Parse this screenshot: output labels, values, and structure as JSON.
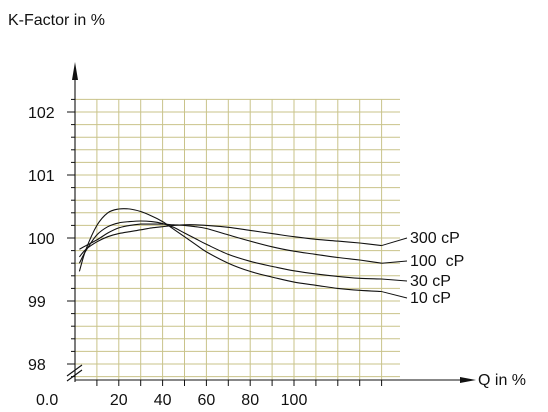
{
  "chart_data": {
    "type": "line",
    "title": "",
    "ylabel": "K-Factor in %",
    "xlabel": "Q in %",
    "x_origin_label": "0.0",
    "x_tick_labels": [
      "20",
      "40",
      "60",
      "80",
      "100"
    ],
    "y_tick_labels": [
      "98",
      "99",
      "100",
      "101",
      "102"
    ],
    "xlim": [
      0,
      150
    ],
    "ylim": [
      97.8,
      102.7
    ],
    "grid": true,
    "grid_color": "#c9c38a",
    "series": [
      {
        "name": "300 cP",
        "x": [
          2,
          5,
          10,
          15,
          20,
          25,
          30,
          35,
          40,
          45,
          50,
          55,
          60,
          70,
          80,
          90,
          100,
          110,
          120,
          130,
          140
        ],
        "y": [
          99.7,
          99.82,
          99.94,
          100.02,
          100.07,
          100.1,
          100.13,
          100.16,
          100.18,
          100.2,
          100.21,
          100.21,
          100.2,
          100.17,
          100.12,
          100.07,
          100.02,
          99.98,
          99.95,
          99.92,
          99.88
        ]
      },
      {
        "name": "100  cP",
        "x": [
          2,
          5,
          10,
          15,
          20,
          25,
          30,
          35,
          40,
          45,
          50,
          55,
          60,
          70,
          80,
          90,
          100,
          110,
          120,
          130,
          140
        ],
        "y": [
          99.82,
          99.88,
          99.97,
          100.08,
          100.16,
          100.2,
          100.22,
          100.22,
          100.22,
          100.21,
          100.2,
          100.18,
          100.15,
          100.05,
          99.95,
          99.86,
          99.79,
          99.74,
          99.69,
          99.65,
          99.6
        ]
      },
      {
        "name": "30 cP",
        "x": [
          2,
          5,
          10,
          15,
          20,
          25,
          30,
          35,
          40,
          45,
          50,
          55,
          60,
          70,
          80,
          90,
          100,
          110,
          120,
          130,
          140
        ],
        "y": [
          99.6,
          99.8,
          100.05,
          100.18,
          100.24,
          100.26,
          100.27,
          100.26,
          100.23,
          100.17,
          100.08,
          99.99,
          99.9,
          99.74,
          99.63,
          99.55,
          99.48,
          99.43,
          99.39,
          99.36,
          99.35
        ]
      },
      {
        "name": "10 cP",
        "x": [
          2,
          5,
          10,
          15,
          20,
          25,
          30,
          35,
          40,
          45,
          50,
          55,
          60,
          70,
          80,
          90,
          100,
          110,
          120,
          130,
          140
        ],
        "y": [
          99.47,
          99.82,
          100.2,
          100.4,
          100.46,
          100.46,
          100.42,
          100.35,
          100.26,
          100.14,
          100.02,
          99.9,
          99.78,
          99.6,
          99.47,
          99.38,
          99.3,
          99.25,
          99.2,
          99.17,
          99.15
        ]
      }
    ]
  }
}
